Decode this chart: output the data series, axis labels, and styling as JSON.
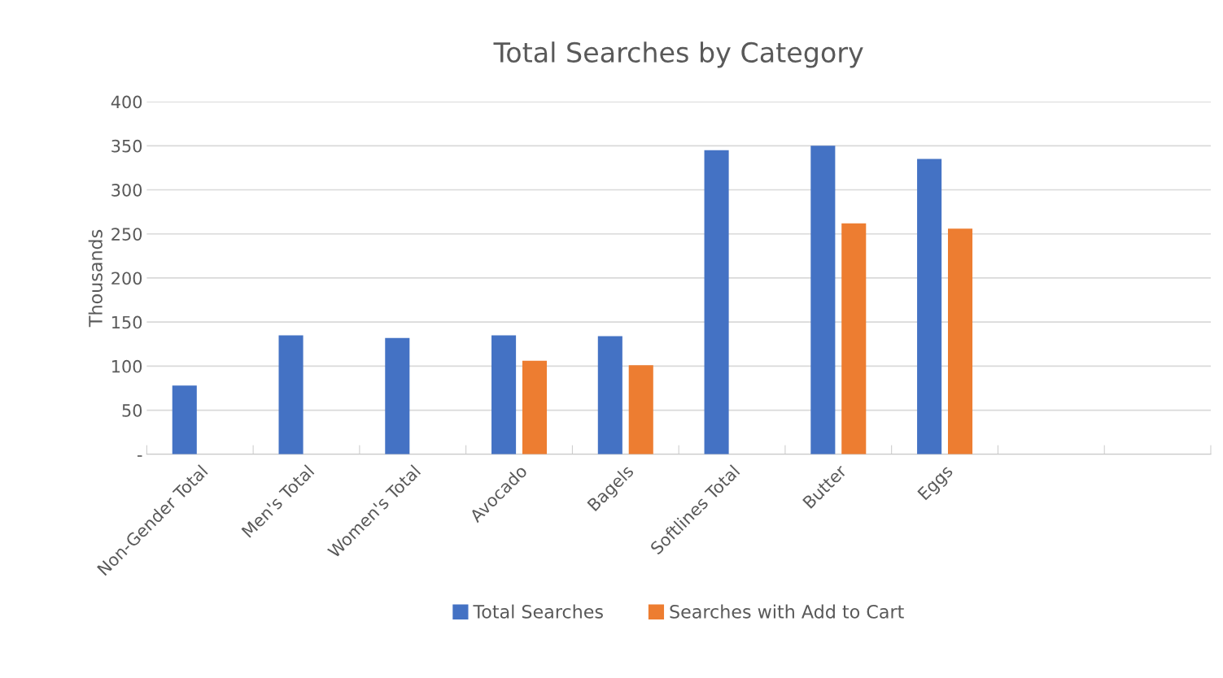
{
  "chart_data": {
    "type": "bar",
    "title": "Total Searches by Category",
    "ylabel": "Thousands",
    "categories": [
      "Non-Gender Total",
      "Men's Total",
      "Women's Total",
      "Avocado",
      "Bagels",
      "Softlines Total",
      "Butter",
      "Eggs",
      null,
      null
    ],
    "series": [
      {
        "name": "Total Searches",
        "color": "#4472c4",
        "values": [
          78,
          135,
          132,
          135,
          134,
          345,
          350,
          335,
          null,
          null
        ]
      },
      {
        "name": "Searches with Add to Cart",
        "color": "#ed7d31",
        "values": [
          null,
          null,
          null,
          106,
          101,
          null,
          262,
          256,
          null,
          null
        ]
      }
    ],
    "ylim": [
      0,
      400
    ],
    "yticks": [
      {
        "value": 0,
        "label": "-"
      },
      50,
      100,
      150,
      200,
      250,
      300,
      350,
      400
    ],
    "grid": "y",
    "legend": "bottom"
  }
}
